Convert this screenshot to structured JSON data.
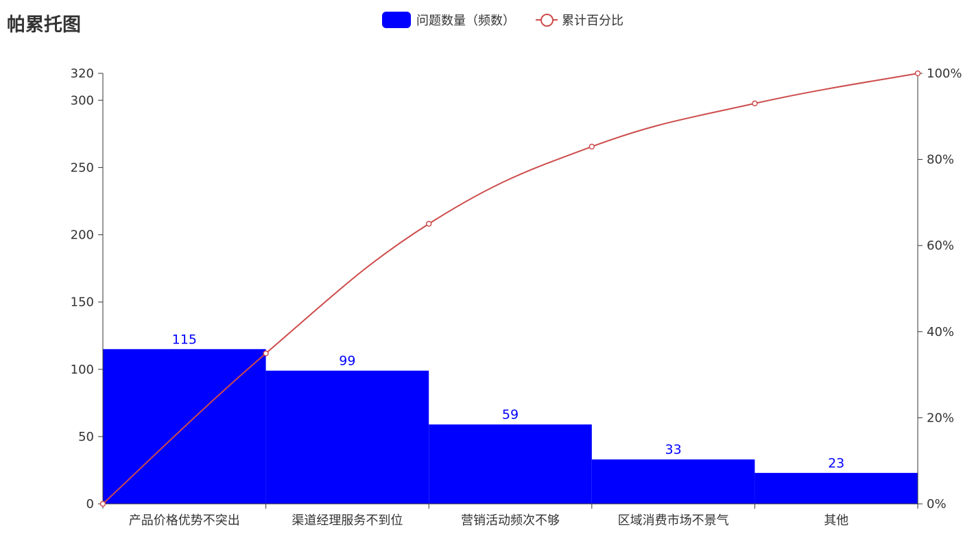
{
  "title": "帕累托图",
  "legend": {
    "bar_label": "问题数量（频数）",
    "line_label": "累计百分比"
  },
  "colors": {
    "bar": "#0000ff",
    "line": "#cd4b4b",
    "axis": "#333333",
    "label": "#0000ff"
  },
  "chart_data": {
    "type": "bar",
    "title": "帕累托图",
    "categories": [
      "产品价格优势不突出",
      "渠道经理服务不到位",
      "营销活动频次不够",
      "区域消费市场不景气",
      "其他"
    ],
    "series": [
      {
        "name": "问题数量（频数）",
        "type": "bar",
        "axis": "left",
        "values": [
          115,
          99,
          59,
          33,
          23
        ]
      },
      {
        "name": "累计百分比",
        "type": "line",
        "axis": "right",
        "x": [
          "0",
          "产品价格优势不突出",
          "渠道经理服务不到位",
          "营销活动频次不够",
          "区域消费市场不景气",
          "其他"
        ],
        "values": [
          0,
          34.95,
          65.05,
          82.98,
          93.01,
          100
        ]
      }
    ],
    "y_left": {
      "min": 0,
      "max": 320,
      "ticks": [
        0,
        50,
        100,
        150,
        200,
        250,
        300,
        320
      ]
    },
    "y_right": {
      "min": 0,
      "max": 100,
      "ticks": [
        0,
        20,
        40,
        60,
        80,
        100
      ],
      "tick_suffix": "%"
    },
    "data_labels": true,
    "grid": false,
    "legend_position": "top-center",
    "xlabel": "",
    "ylabel": ""
  }
}
